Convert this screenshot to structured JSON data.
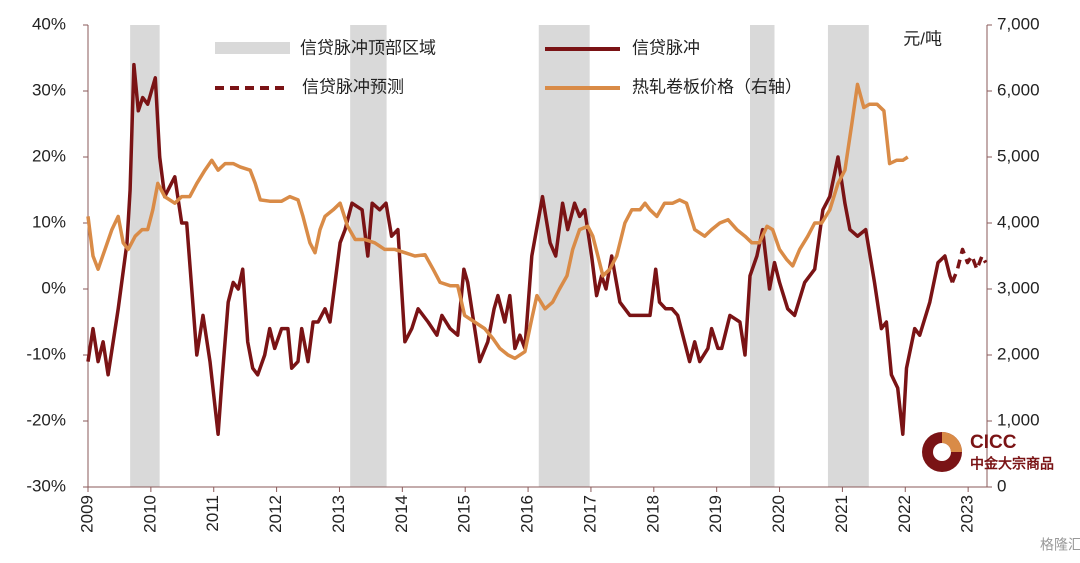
{
  "chart_data": {
    "type": "line",
    "xlim": [
      2009,
      2023.3
    ],
    "xticks": [
      2009,
      2010,
      2011,
      2012,
      2013,
      2014,
      2015,
      2016,
      2017,
      2018,
      2019,
      2020,
      2021,
      2022,
      2023
    ],
    "ylim": [
      -30,
      40
    ],
    "yticks": [
      {
        "value": -30,
        "label": "-30%"
      },
      {
        "value": -20,
        "label": "-20%"
      },
      {
        "value": -10,
        "label": "-10%"
      },
      {
        "value": 0,
        "label": "0%"
      },
      {
        "value": 10,
        "label": "10%"
      },
      {
        "value": 20,
        "label": "20%"
      },
      {
        "value": 30,
        "label": "30%"
      },
      {
        "value": 40,
        "label": "40%"
      }
    ],
    "y2lim": [
      0,
      7000
    ],
    "y2ticks": [
      0,
      {
        "value": 1000,
        "label": "1,000"
      },
      {
        "value": 2000,
        "label": "2,000"
      },
      {
        "value": 3000,
        "label": "3,000"
      },
      {
        "value": 4000,
        "label": "4,000"
      },
      {
        "value": 5000,
        "label": "5,000"
      },
      {
        "value": 6000,
        "label": "6,000"
      },
      {
        "value": 7000,
        "label": "7,000"
      }
    ],
    "y2_label": "元/吨",
    "bands": {
      "name": "信贷脉冲顶部区域",
      "color": "#d9d9d9",
      "ranges": [
        [
          2009.67,
          2010.14
        ],
        [
          2013.17,
          2013.75
        ],
        [
          2016.17,
          2016.98
        ],
        [
          2019.53,
          2019.92
        ],
        [
          2020.77,
          2021.42
        ]
      ]
    },
    "series": [
      {
        "name": "信贷脉冲",
        "color": "#7a1315",
        "dashed": false,
        "axis": "y",
        "x": [
          2009.0,
          2009.08,
          2009.16,
          2009.24,
          2009.32,
          2009.48,
          2009.62,
          2009.67,
          2009.73,
          2009.8,
          2009.87,
          2009.95,
          2010.07,
          2010.14,
          2010.22,
          2010.38,
          2010.49,
          2010.57,
          2010.73,
          2010.83,
          2010.94,
          2011.07,
          2011.13,
          2011.23,
          2011.31,
          2011.39,
          2011.46,
          2011.54,
          2011.62,
          2011.7,
          2011.81,
          2011.89,
          2011.97,
          2012.08,
          2012.18,
          2012.24,
          2012.34,
          2012.4,
          2012.5,
          2012.58,
          2012.66,
          2012.77,
          2012.85,
          2013.01,
          2013.09,
          2013.2,
          2013.36,
          2013.45,
          2013.52,
          2013.64,
          2013.74,
          2013.83,
          2013.93,
          2014.04,
          2014.15,
          2014.25,
          2014.41,
          2014.55,
          2014.63,
          2014.76,
          2014.88,
          2014.98,
          2015.04,
          2015.23,
          2015.36,
          2015.46,
          2015.52,
          2015.63,
          2015.71,
          2015.79,
          2015.87,
          2015.95,
          2016.06,
          2016.23,
          2016.35,
          2016.44,
          2016.55,
          2016.63,
          2016.74,
          2016.82,
          2016.9,
          2017.01,
          2017.09,
          2017.17,
          2017.24,
          2017.33,
          2017.46,
          2017.62,
          2017.78,
          2017.94,
          2018.03,
          2018.09,
          2018.19,
          2018.29,
          2018.38,
          2018.57,
          2018.65,
          2018.73,
          2018.86,
          2018.92,
          2019.02,
          2019.08,
          2019.21,
          2019.37,
          2019.45,
          2019.53,
          2019.64,
          2019.73,
          2019.84,
          2019.92,
          2020.0,
          2020.13,
          2020.24,
          2020.4,
          2020.56,
          2020.69,
          2020.8,
          2020.93,
          2021.04,
          2021.12,
          2021.24,
          2021.37,
          2021.51,
          2021.62,
          2021.7,
          2021.78,
          2021.88,
          2021.96,
          2022.02,
          2022.15,
          2022.23,
          2022.39,
          2022.52,
          2022.63,
          2022.71,
          2022.75
        ],
        "values": [
          -11,
          -6,
          -11,
          -8,
          -13,
          -3,
          7,
          15,
          34,
          27,
          29,
          28,
          32,
          20,
          14,
          17,
          10,
          10,
          -10,
          -4,
          -11,
          -22,
          -14,
          -2,
          1,
          0,
          3,
          -8,
          -12,
          -13,
          -10,
          -6,
          -9,
          -6,
          -6,
          -12,
          -11,
          -6,
          -11,
          -5,
          -5,
          -3,
          -5,
          7,
          9,
          13,
          12,
          5,
          13,
          12,
          13,
          8,
          9,
          -8,
          -6,
          -3,
          -5,
          -7,
          -4,
          -6,
          -7,
          3,
          1,
          -11,
          -8,
          -3,
          -1,
          -5,
          -1,
          -9,
          -7,
          -9,
          5,
          14,
          7,
          5,
          13,
          9,
          13,
          11,
          12,
          5,
          -1,
          2,
          0,
          5,
          -2,
          -4,
          -4,
          -4,
          3,
          -2,
          -3,
          -3,
          -4,
          -11,
          -8,
          -11,
          -9,
          -6,
          -9,
          -9,
          -4,
          -5,
          -10,
          2,
          5,
          9,
          0,
          4,
          1,
          -3,
          -4,
          1,
          3,
          12,
          14,
          20,
          13,
          9,
          8,
          9,
          1,
          -6,
          -5,
          -13,
          -15,
          -22,
          -12,
          -6,
          -7,
          -2,
          4,
          5,
          2,
          1
        ]
      },
      {
        "name": "信贷脉冲预测",
        "color": "#7a1315",
        "dashed": true,
        "axis": "y",
        "x": [
          2022.75,
          2022.83,
          2022.91,
          2022.99,
          2023.06,
          2023.14,
          2023.22,
          2023.28
        ],
        "values": [
          1,
          3,
          6,
          4,
          5,
          3,
          5,
          4
        ]
      },
      {
        "name": "热轧卷板价格（右轴）",
        "color": "#d98b47",
        "dashed": false,
        "axis": "y2",
        "x": [
          2009.0,
          2009.08,
          2009.16,
          2009.27,
          2009.38,
          2009.48,
          2009.56,
          2009.64,
          2009.75,
          2009.86,
          2009.95,
          2010.03,
          2010.11,
          2010.22,
          2010.38,
          2010.49,
          2010.62,
          2010.73,
          2010.86,
          2010.97,
          2011.07,
          2011.18,
          2011.31,
          2011.42,
          2011.58,
          2011.66,
          2011.74,
          2011.89,
          2012.08,
          2012.21,
          2012.34,
          2012.42,
          2012.53,
          2012.61,
          2012.69,
          2012.77,
          2012.9,
          2013.01,
          2013.13,
          2013.25,
          2013.4,
          2013.56,
          2013.72,
          2013.88,
          2014.04,
          2014.2,
          2014.36,
          2014.49,
          2014.6,
          2014.76,
          2014.88,
          2014.99,
          2015.15,
          2015.31,
          2015.44,
          2015.55,
          2015.68,
          2015.79,
          2015.95,
          2016.06,
          2016.14,
          2016.27,
          2016.39,
          2016.5,
          2016.62,
          2016.71,
          2016.82,
          2016.95,
          2017.03,
          2017.11,
          2017.19,
          2017.3,
          2017.41,
          2017.54,
          2017.65,
          2017.78,
          2017.86,
          2017.94,
          2018.05,
          2018.17,
          2018.3,
          2018.41,
          2018.52,
          2018.65,
          2018.81,
          2018.92,
          2019.05,
          2019.18,
          2019.32,
          2019.45,
          2019.56,
          2019.68,
          2019.8,
          2019.89,
          2020.0,
          2020.11,
          2020.21,
          2020.32,
          2020.45,
          2020.56,
          2020.67,
          2020.8,
          2020.93,
          2021.04,
          2021.15,
          2021.24,
          2021.34,
          2021.43,
          2021.55,
          2021.66,
          2021.75,
          2021.86,
          2021.96,
          2022.04
        ],
        "values": [
          4100,
          3500,
          3300,
          3600,
          3900,
          4100,
          3700,
          3600,
          3800,
          3900,
          3900,
          4200,
          4600,
          4400,
          4300,
          4400,
          4400,
          4600,
          4800,
          4950,
          4800,
          4900,
          4900,
          4850,
          4800,
          4600,
          4350,
          4330,
          4330,
          4400,
          4350,
          4100,
          3700,
          3550,
          3900,
          4100,
          4200,
          4300,
          3950,
          3750,
          3750,
          3700,
          3600,
          3600,
          3550,
          3500,
          3520,
          3300,
          3100,
          3050,
          3050,
          2600,
          2500,
          2400,
          2250,
          2100,
          2000,
          1950,
          2050,
          2550,
          2900,
          2700,
          2800,
          3000,
          3200,
          3600,
          3900,
          3950,
          3800,
          3500,
          3200,
          3300,
          3500,
          4000,
          4200,
          4200,
          4300,
          4200,
          4100,
          4300,
          4300,
          4350,
          4300,
          3900,
          3800,
          3900,
          4000,
          4050,
          3900,
          3800,
          3700,
          3700,
          3950,
          3900,
          3600,
          3450,
          3350,
          3600,
          3800,
          4000,
          4000,
          4200,
          4600,
          4800,
          5500,
          6100,
          5750,
          5800,
          5800,
          5700,
          4900,
          4950,
          4950,
          5000
        ]
      }
    ]
  },
  "logo": {
    "mark": "CICC",
    "name": "中金大宗商品"
  },
  "watermark": "格隆汇"
}
